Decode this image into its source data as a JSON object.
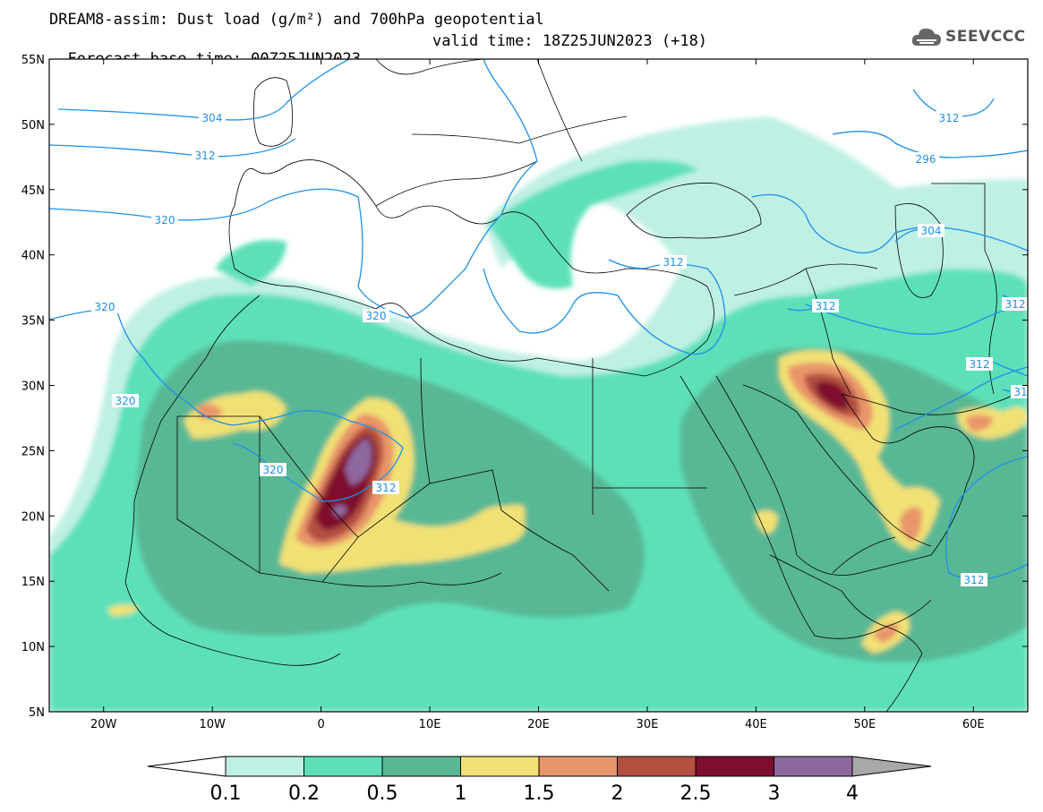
{
  "header": {
    "title_line1": "DREAM8-assim: Dust load (g/m²) and 700hPa geopotential",
    "base_time": "Forecast base time: 00Z25JUN2023",
    "valid_time": "valid time: 18Z25JUN2023 (+18)",
    "logo_text": "SEEVCCC"
  },
  "axes": {
    "lat_labels": [
      "55N",
      "50N",
      "45N",
      "40N",
      "35N",
      "30N",
      "25N",
      "20N",
      "15N",
      "10N",
      "5N"
    ],
    "lon_labels": [
      "20W",
      "10W",
      "0",
      "10E",
      "20E",
      "30E",
      "40E",
      "50E",
      "60E"
    ]
  },
  "contour_labels": [
    "304",
    "312",
    "320",
    "320",
    "320",
    "320",
    "312",
    "312",
    "312",
    "296",
    "304",
    "312",
    "312",
    "312",
    "31",
    "320",
    "312"
  ],
  "colorbar": {
    "levels": [
      "0.1",
      "0.2",
      "0.5",
      "1",
      "1.5",
      "2",
      "2.5",
      "3",
      "4"
    ],
    "colors": [
      "#bff0e4",
      "#5de0b9",
      "#58b894",
      "#f1e175",
      "#e9956b",
      "#b3503f",
      "#7e0d2f",
      "#8e679f"
    ],
    "under_color": "#ffffff",
    "over_color": "#a8a8a8"
  },
  "colors": {
    "geopotential_line": "#1e90e8",
    "border": "#000000"
  }
}
